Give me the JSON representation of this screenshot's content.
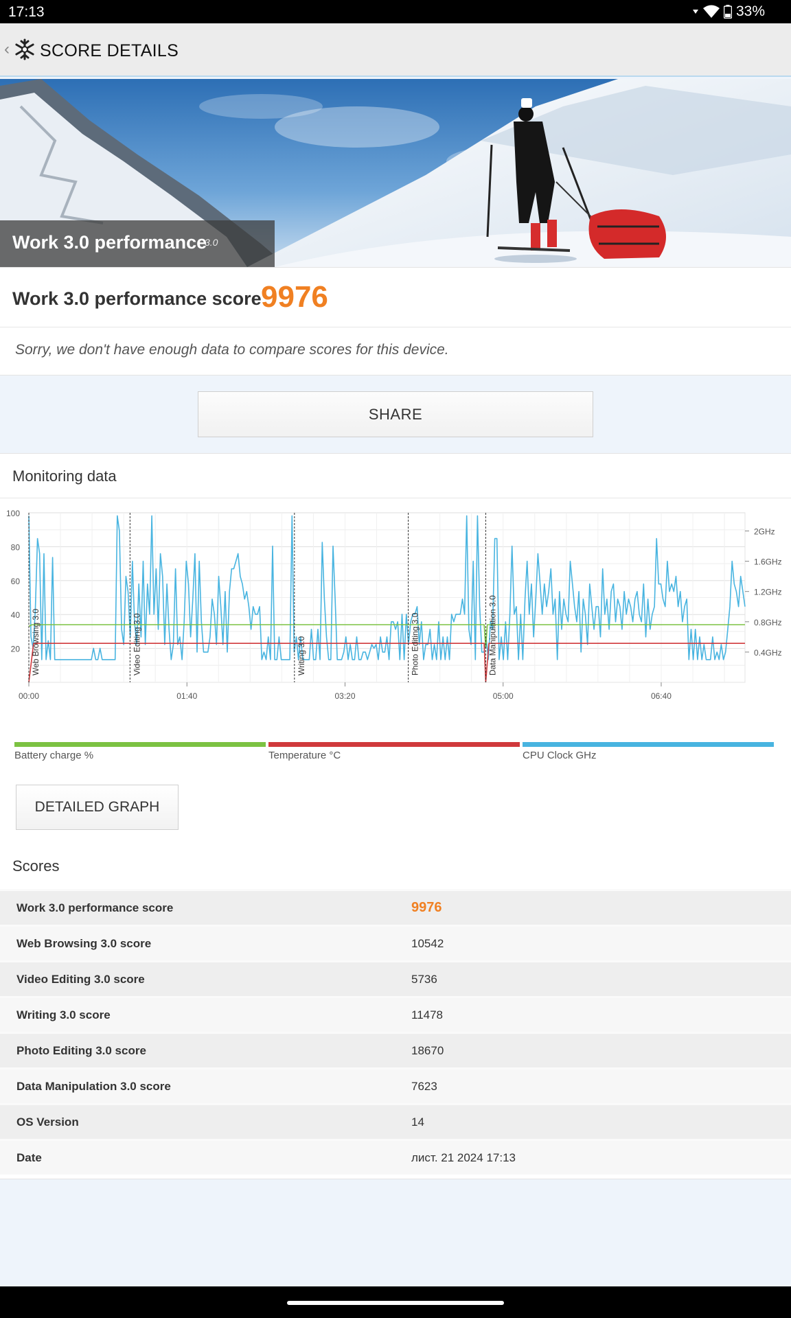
{
  "status_bar": {
    "time": "17:13",
    "battery": "33%"
  },
  "app_bar": {
    "title": "SCORE DETAILS"
  },
  "hero": {
    "title": "Work 3.0 performance",
    "version": "3.0"
  },
  "score": {
    "label": "Work 3.0 performance score",
    "value": "9976",
    "note": "Sorry, we don't have enough data to compare scores for this device."
  },
  "share_label": "SHARE",
  "monitoring": {
    "title": "Monitoring data",
    "legend": [
      {
        "label": "Battery charge %",
        "color": "#7cc242"
      },
      {
        "label": "Temperature °C",
        "color": "#d0393c"
      },
      {
        "label": "CPU Clock GHz",
        "color": "#48b4e0"
      }
    ],
    "detailed_graph_label": "DETAILED GRAPH"
  },
  "chart_data": {
    "type": "line",
    "x_ticks": [
      "00:00",
      "01:40",
      "03:20",
      "05:00",
      "06:40"
    ],
    "x_tick_seconds": [
      0,
      100,
      200,
      300,
      400
    ],
    "x_range_seconds": [
      0,
      453
    ],
    "y_left_ticks": [
      20,
      40,
      60,
      80,
      100
    ],
    "y_left_range": [
      0,
      100
    ],
    "y_right_ticks": [
      "0.4GHz",
      "0.8GHz",
      "1.2GHz",
      "1.6GHz",
      "2GHz"
    ],
    "y_right_range_ghz": [
      0,
      2.24
    ],
    "grid": true,
    "sections": [
      {
        "label": "Web Browsing 3.0",
        "start_seconds": 0
      },
      {
        "label": "Video Editing 3.0",
        "start_seconds": 64
      },
      {
        "label": "Writing 3.0",
        "start_seconds": 168
      },
      {
        "label": "Photo Editing 3.0",
        "start_seconds": 240
      },
      {
        "label": "Data Manipulation 3.0",
        "start_seconds": 289
      }
    ],
    "series": [
      {
        "name": "Battery charge %",
        "color": "#7cc242",
        "points": [
          [
            0,
            33
          ],
          [
            2,
            34
          ],
          [
            288,
            34
          ],
          [
            289,
            20
          ],
          [
            290,
            34
          ],
          [
            453,
            34
          ]
        ]
      },
      {
        "name": "Temperature °C",
        "color": "#d0393c",
        "points": [
          [
            0,
            0
          ],
          [
            3,
            23
          ],
          [
            288,
            23
          ],
          [
            289,
            0
          ],
          [
            291,
            23
          ],
          [
            453,
            23
          ]
        ]
      },
      {
        "name": "CPU Clock GHz",
        "color": "#48b4e0",
        "values_ghz": [
          2.2,
          0.6,
          0.45,
          0.95,
          1.9,
          1.7,
          0.3,
          1.7,
          0.3,
          0.55,
          0.3,
          1.65,
          0.3,
          0.3,
          0.3,
          0.3,
          0.3,
          0.3,
          0.3,
          0.3,
          0.3,
          0.3,
          0.3,
          0.3,
          0.3,
          0.3,
          0.3,
          0.3,
          0.3,
          0.3,
          0.45,
          0.3,
          0.3,
          0.45,
          0.3,
          0.3,
          0.3,
          0.3,
          0.3,
          0.3,
          0.3,
          2.2,
          2.0,
          0.7,
          0.5,
          1.4,
          1.2,
          0.6,
          1.6,
          0.8,
          0.5,
          1.3,
          0.6,
          1.6,
          0.5,
          1.3,
          0.9,
          2.2,
          0.9,
          1.5,
          0.7,
          1.7,
          1.4,
          0.5,
          1.3,
          0.7,
          0.3,
          0.5,
          1.5,
          0.5,
          0.6,
          0.3,
          0.8,
          1.6,
          1.3,
          0.6,
          1.1,
          1.7,
          0.4,
          1.6,
          0.8,
          0.4,
          0.4,
          0.4,
          0.6,
          1.1,
          0.9,
          0.5,
          1.4,
          1.0,
          0.5,
          1.2,
          0.4,
          1.2,
          1.5,
          1.5,
          1.6,
          1.7,
          1.4,
          1.3,
          1.1,
          1.2,
          1.0,
          0.7,
          1.0,
          0.9,
          0.9,
          1.0,
          0.3,
          0.4,
          0.3,
          0.6,
          0.3,
          1.8,
          0.3,
          0.3,
          0.6,
          0.3,
          0.3,
          0.3,
          0.3,
          0.3,
          2.2,
          0.4,
          0.6,
          0.3,
          0.6,
          0.3,
          0.3,
          0.3,
          0.3,
          0.7,
          0.3,
          0.3,
          0.7,
          0.3,
          1.85,
          1.1,
          0.6,
          0.3,
          0.3,
          1.8,
          1.1,
          0.3,
          0.3,
          0.3,
          0.4,
          0.6,
          0.3,
          0.5,
          0.3,
          0.3,
          0.6,
          0.3,
          0.3,
          0.4,
          0.4,
          0.3,
          0.4,
          0.5,
          0.45,
          0.5,
          0.3,
          0.6,
          0.4,
          0.4,
          0.6,
          0.3,
          0.8,
          0.8,
          0.7,
          0.8,
          0.3,
          0.9,
          0.3,
          0.9,
          0.5,
          0.8,
          0.9,
          0.9,
          1.0,
          0.5,
          0.8,
          0.3,
          0.5,
          0.5,
          0.7,
          0.3,
          0.5,
          0.3,
          0.8,
          0.3,
          0.6,
          0.3,
          0.6,
          0.3,
          0.9,
          0.8,
          0.9,
          0.9,
          0.9,
          1.1,
          0.9,
          2.2,
          0.7,
          0.5,
          1.6,
          0.3,
          2.2,
          1.0,
          0.4,
          0.4,
          0.6,
          0.3,
          0.8,
          0.7,
          1.9,
          1.9,
          0.3,
          0.6,
          0.3,
          0.8,
          0.3,
          0.9,
          1.8,
          0.9,
          1.0,
          0.3,
          0.9,
          0.3,
          1.1,
          1.6,
          0.9,
          1.3,
          0.6,
          1.1,
          1.7,
          1.3,
          0.9,
          1.3,
          1.0,
          1.2,
          1.5,
          0.9,
          1.1,
          0.3,
          1.2,
          0.7,
          1.1,
          0.9,
          0.8,
          1.6,
          1.3,
          1.0,
          0.8,
          1.2,
          0.4,
          1.1,
          0.9,
          0.5,
          1.3,
          1.0,
          0.7,
          1.0,
          1.0,
          0.6,
          1.5,
          0.9,
          1.1,
          0.7,
          1.2,
          1.3,
          0.8,
          1.1,
          1.0,
          0.7,
          1.2,
          0.9,
          1.1,
          1.0,
          0.8,
          1.1,
          1.2,
          0.9,
          0.8,
          1.3,
          0.6,
          1.1,
          0.7,
          0.9,
          1.0,
          1.9,
          1.3,
          1.3,
          1.1,
          1.0,
          1.6,
          1.2,
          1.3,
          1.2,
          1.4,
          1.0,
          1.2,
          0.8,
          1.0,
          1.1,
          0.3,
          0.7,
          0.3,
          0.7,
          0.3,
          0.6,
          0.3,
          0.5,
          0.3,
          0.3,
          0.3,
          0.6,
          0.3,
          0.4,
          0.3,
          0.5,
          0.3,
          0.4,
          0.7,
          1.0,
          1.6,
          1.3,
          1.2,
          1.0,
          1.4,
          1.2,
          1.0
        ]
      }
    ]
  },
  "scores": {
    "title": "Scores",
    "rows": [
      {
        "label": "Work 3.0 performance score",
        "value": "9976",
        "highlight": true
      },
      {
        "label": "Web Browsing 3.0 score",
        "value": "10542"
      },
      {
        "label": "Video Editing 3.0 score",
        "value": "5736"
      },
      {
        "label": "Writing 3.0 score",
        "value": "11478"
      },
      {
        "label": "Photo Editing 3.0 score",
        "value": "18670"
      },
      {
        "label": "Data Manipulation 3.0 score",
        "value": "7623"
      },
      {
        "label": "OS Version",
        "value": "14"
      },
      {
        "label": "Date",
        "value": "лист. 21 2024 17:13"
      }
    ]
  }
}
